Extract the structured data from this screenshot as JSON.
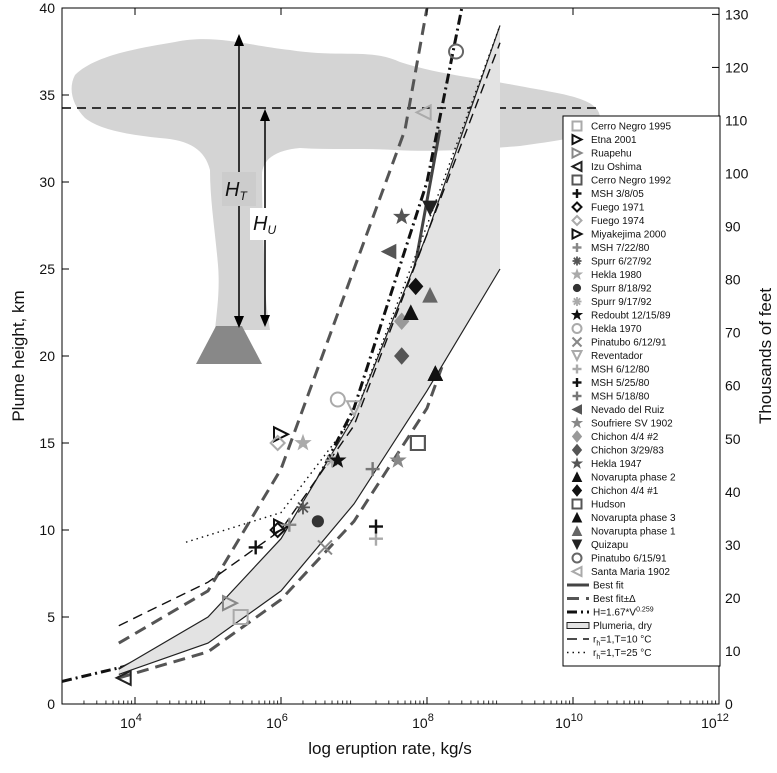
{
  "chart_data": {
    "type": "scatter",
    "xlabel": "log eruption rate, kg/s",
    "ylabel": "Plume height, km",
    "y2label": "Thousands of feet",
    "x_scale": "log",
    "xlim": [
      1000,
      1000000000000
    ],
    "ylim": [
      0,
      40
    ],
    "y2lim": [
      0,
      131.2
    ],
    "grid": false,
    "legend_placement": "right",
    "x_ticks": [
      {
        "value": 10000,
        "base": "10",
        "exp": "4"
      },
      {
        "value": 1000000,
        "base": "10",
        "exp": "6"
      },
      {
        "value": 100000000,
        "base": "10",
        "exp": "8"
      },
      {
        "value": 10000000000,
        "base": "10",
        "exp": "10"
      },
      {
        "value": 1000000000000,
        "base": "10",
        "exp": "12"
      }
    ],
    "y_ticks": [
      "0",
      "5",
      "10",
      "15",
      "20",
      "25",
      "30",
      "35",
      "40"
    ],
    "y2_ticks": [
      "0",
      "10",
      "20",
      "30",
      "40",
      "50",
      "60",
      "70",
      "80",
      "90",
      "100",
      "110",
      "120",
      "130"
    ],
    "inset": {
      "label_total_base": "H",
      "label_total_sub": "T",
      "label_umbrella_base": "H",
      "label_umbrella_sub": "U",
      "umbrella_height_km": 34.2
    },
    "series": [
      {
        "name": "Cerro Negro 1995",
        "marker": "square",
        "color": "#aaaaaa",
        "points": [
          [
            280000,
            5.0
          ]
        ]
      },
      {
        "name": "Etna 2001",
        "marker": "triangle-right",
        "color": "#111111",
        "points": [
          [
            1000000,
            15.5
          ]
        ]
      },
      {
        "name": "Ruapehu",
        "marker": "triangle-right",
        "color": "#888888",
        "points": [
          [
            200000,
            5.8
          ]
        ]
      },
      {
        "name": "Izu Oshima",
        "marker": "triangle-left",
        "color": "#222222",
        "points": [
          [
            7000,
            1.5
          ]
        ]
      },
      {
        "name": "Cerro Negro 1992",
        "marker": "square",
        "color": "#555555",
        "points": [
          [
            75000000,
            15.0
          ]
        ]
      },
      {
        "name": "MSH 3/8/05",
        "marker": "plus",
        "color": "#111111",
        "points": [
          [
            450000,
            9.0
          ]
        ]
      },
      {
        "name": "Fuego 1971",
        "marker": "diamond-open",
        "color": "#111111",
        "points": [
          [
            900000,
            10.0
          ]
        ]
      },
      {
        "name": "Fuego 1974",
        "marker": "diamond-open",
        "color": "#aaaaaa",
        "points": [
          [
            900000,
            15.0
          ]
        ]
      },
      {
        "name": "Miyakejima 2000",
        "marker": "triangle-right",
        "color": "#111111",
        "points": [
          [
            1000000,
            10.2
          ]
        ]
      },
      {
        "name": "MSH 7/22/80",
        "marker": "plus",
        "color": "#888888",
        "points": [
          [
            1300000,
            10.3
          ]
        ]
      },
      {
        "name": "Spurr 6/27/92",
        "marker": "asterisk",
        "color": "#555555",
        "points": [
          [
            2000000,
            11.3
          ]
        ]
      },
      {
        "name": "Hekla 1980",
        "marker": "star",
        "color": "#aaaaaa",
        "points": [
          [
            2000000,
            15.0
          ]
        ]
      },
      {
        "name": "Spurr 8/18/92",
        "marker": "circle-filled",
        "color": "#333333",
        "points": [
          [
            3200000,
            10.5
          ]
        ]
      },
      {
        "name": "Spurr 9/17/92",
        "marker": "asterisk",
        "color": "#aaaaaa",
        "points": [
          [
            5000000,
            14.0
          ]
        ]
      },
      {
        "name": "Redoubt 12/15/89",
        "marker": "star",
        "color": "#111111",
        "points": [
          [
            6000000,
            14.0
          ]
        ]
      },
      {
        "name": "Hekla 1970",
        "marker": "circle-open",
        "color": "#aaaaaa",
        "points": [
          [
            6000000,
            17.5
          ]
        ]
      },
      {
        "name": "Pinatubo 6/12/91",
        "marker": "x",
        "color": "#888888",
        "points": [
          [
            4000000,
            9.0
          ]
        ]
      },
      {
        "name": "Reventador",
        "marker": "triangle-down",
        "color": "#aaaaaa",
        "points": [
          [
            10000000,
            17.0
          ]
        ]
      },
      {
        "name": "MSH 6/12/80",
        "marker": "plus",
        "color": "#aaaaaa",
        "points": [
          [
            20000000,
            9.5
          ]
        ]
      },
      {
        "name": "MSH 5/25/80",
        "marker": "plus",
        "color": "#111111",
        "points": [
          [
            20000000,
            10.2
          ]
        ]
      },
      {
        "name": "MSH 5/18/80",
        "marker": "plus",
        "color": "#777777",
        "points": [
          [
            18000000,
            13.5
          ]
        ]
      },
      {
        "name": "Nevado del Ruiz",
        "marker": "triangle-left-filled",
        "color": "#555555",
        "points": [
          [
            30000000,
            26.0
          ]
        ]
      },
      {
        "name": "Soufriere SV 1902",
        "marker": "star",
        "color": "#888888",
        "points": [
          [
            40000000,
            14.0
          ]
        ]
      },
      {
        "name": "Chichon 4/4 #2",
        "marker": "diamond-filled",
        "color": "#999999",
        "points": [
          [
            45000000,
            22.0
          ]
        ]
      },
      {
        "name": "Chichon 3/29/83",
        "marker": "diamond-filled",
        "color": "#555555",
        "points": [
          [
            45000000,
            20.0
          ]
        ]
      },
      {
        "name": "Hekla 1947",
        "marker": "star",
        "color": "#555555",
        "points": [
          [
            45000000,
            28.0
          ]
        ]
      },
      {
        "name": "Novarupta phase 2",
        "marker": "triangle-up-filled",
        "color": "#111111",
        "points": [
          [
            60000000,
            22.5
          ],
          [
            130000000,
            19.0
          ]
        ]
      },
      {
        "name": "Chichon 4/4 #1",
        "marker": "diamond-filled",
        "color": "#111111",
        "points": [
          [
            70000000,
            24.0
          ]
        ]
      },
      {
        "name": "Hudson",
        "marker": "square",
        "color": "#555555",
        "points": [
          [
            75000000,
            15.0
          ]
        ]
      },
      {
        "name": "Novarupta phase 3",
        "marker": "triangle-up-filled",
        "color": "#111111",
        "points": [
          [
            130000000,
            19.0
          ]
        ]
      },
      {
        "name": "Novarupta phase 1",
        "marker": "triangle-up-filled",
        "color": "#666666",
        "points": [
          [
            110000000,
            23.5
          ]
        ]
      },
      {
        "name": "Quizapu",
        "marker": "triangle-down-filled",
        "color": "#222222",
        "points": [
          [
            110000000,
            28.5
          ]
        ]
      },
      {
        "name": "Pinatubo 6/15/91",
        "marker": "circle-open",
        "color": "#666666",
        "points": [
          [
            250000000,
            37.5
          ]
        ]
      },
      {
        "name": "Santa Maria 1902",
        "marker": "triangle-left",
        "color": "#aaaaaa",
        "points": [
          [
            90000000,
            34.0
          ]
        ]
      }
    ],
    "curves": [
      {
        "name": "Best fit",
        "style": "solid-thick",
        "color": "#444444",
        "points": [
          [
            6000,
            2.0
          ],
          [
            100000,
            4.5
          ],
          [
            1000000,
            8.5
          ],
          [
            10000000,
            15.0
          ],
          [
            50000000,
            22.0
          ],
          [
            150000000,
            33.0
          ]
        ]
      },
      {
        "name": "Best fit±Δ",
        "style": "dashed-thick",
        "color": "#555555",
        "band": "upper",
        "points": [
          [
            6000,
            3.5
          ],
          [
            100000,
            6.5
          ],
          [
            1000000,
            13.5
          ],
          [
            10000000,
            25.0
          ],
          [
            50000000,
            33.0
          ],
          [
            100000000,
            40.0
          ]
        ]
      },
      {
        "name": "",
        "style": "dashed-thick",
        "color": "#555555",
        "band": "lower",
        "points": [
          [
            6000,
            1.5
          ],
          [
            100000,
            3.0
          ],
          [
            1000000,
            6.0
          ],
          [
            10000000,
            10.5
          ],
          [
            100000000,
            17.0
          ],
          [
            400000000,
            24.0
          ]
        ]
      },
      {
        "name": "H=1.67*V",
        "name_sup": "0.259",
        "style": "dashdot",
        "color": "#111111",
        "points": [
          [
            1000,
            1.3
          ],
          [
            10000,
            2.3
          ],
          [
            100000,
            4.6
          ],
          [
            1000000,
            8.8
          ],
          [
            10000000,
            17.0
          ],
          [
            100000000,
            30.0
          ],
          [
            300000000,
            40.0
          ]
        ]
      },
      {
        "name": "Plumeria, dry",
        "style": "band",
        "color": "#cccccc",
        "upper": [
          [
            6000,
            2.0
          ],
          [
            100000,
            5.0
          ],
          [
            1000000,
            9.5
          ],
          [
            10000000,
            16.5
          ],
          [
            100000000,
            27.0
          ],
          [
            1000000000,
            39.0
          ]
        ],
        "lower": [
          [
            6000,
            1.7
          ],
          [
            100000,
            3.5
          ],
          [
            1000000,
            6.5
          ],
          [
            10000000,
            11.5
          ],
          [
            100000000,
            18.0
          ],
          [
            1000000000,
            25.0
          ]
        ]
      },
      {
        "name": "r",
        "name_sub": "h",
        "name_rest": "=1,T=10 °C",
        "style": "longdash",
        "color": "#111111",
        "points": [
          [
            6000,
            4.5
          ],
          [
            100000,
            7.0
          ],
          [
            1000000,
            10.0
          ],
          [
            10000000,
            16.0
          ],
          [
            100000000,
            27.0
          ],
          [
            1000000000,
            38.0
          ]
        ]
      },
      {
        "name": "r",
        "name_sub": "h",
        "name_rest": "=1,T=25 °C",
        "style": "dotted",
        "color": "#111111",
        "points": [
          [
            50000,
            9.3
          ],
          [
            1000000,
            11.0
          ],
          [
            10000000,
            16.5
          ],
          [
            100000000,
            27.5
          ],
          [
            1000000000,
            39.0
          ]
        ]
      }
    ]
  }
}
